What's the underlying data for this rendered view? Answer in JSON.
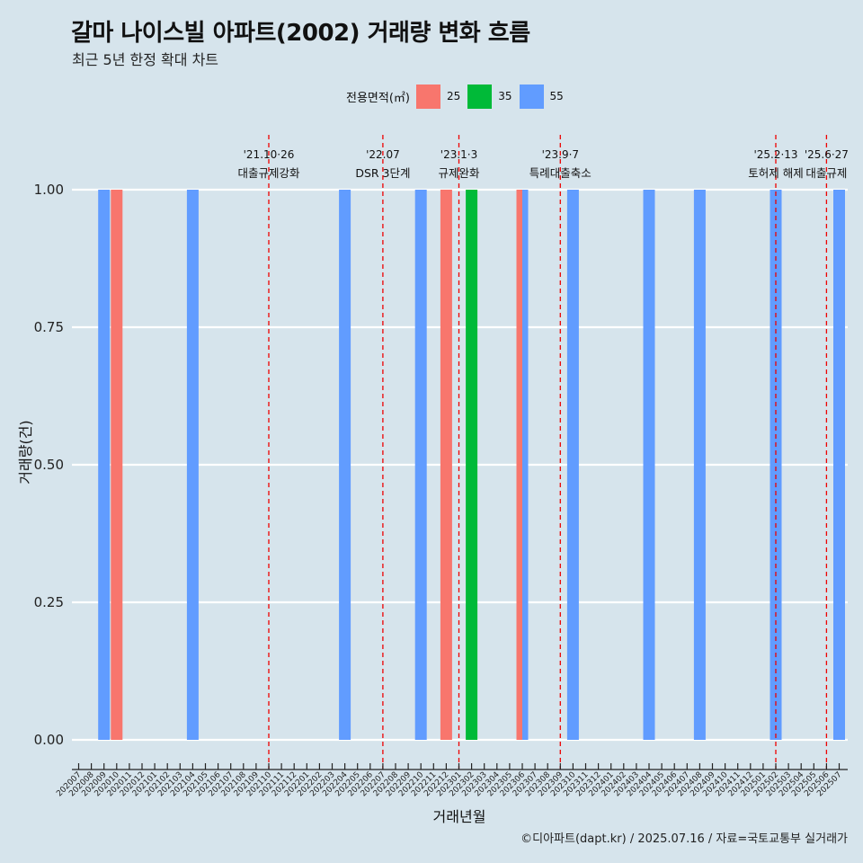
{
  "title": "갈마 나이스빌 아파트(2002) 거래량 변화 흐름",
  "subtitle": "최근 5년 한정 확대 차트",
  "caption": "©디아파트(dapt.kr) / 2025.07.16 / 자료=국토교통부 실거래가",
  "legend": {
    "title": "전용면적(㎡)",
    "items": [
      {
        "label": "25",
        "color": "#f8766d"
      },
      {
        "label": "35",
        "color": "#00ba38"
      },
      {
        "label": "55",
        "color": "#619cff"
      }
    ]
  },
  "chart_data": {
    "type": "bar",
    "xlabel": "거래년월",
    "ylabel": "거래량(건)",
    "ylim": [
      0,
      1
    ],
    "yticks": [
      "0.00",
      "0.25",
      "0.50",
      "0.75",
      "1.00"
    ],
    "categories": [
      "202007",
      "202008",
      "202009",
      "202010",
      "202011",
      "202012",
      "202101",
      "202102",
      "202103",
      "202104",
      "202105",
      "202106",
      "202107",
      "202108",
      "202109",
      "202110",
      "202111",
      "202112",
      "202201",
      "202202",
      "202203",
      "202204",
      "202205",
      "202206",
      "202207",
      "202208",
      "202209",
      "202210",
      "202211",
      "202212",
      "202301",
      "202302",
      "202303",
      "202304",
      "202305",
      "202306",
      "202307",
      "202308",
      "202309",
      "202310",
      "202311",
      "202312",
      "202401",
      "202402",
      "202403",
      "202404",
      "202405",
      "202406",
      "202407",
      "202408",
      "202409",
      "202410",
      "202411",
      "202412",
      "202501",
      "202502",
      "202503",
      "202504",
      "202505",
      "202506",
      "202507"
    ],
    "series": [
      {
        "name": "25",
        "color": "#f8766d",
        "points": [
          {
            "x": "202010",
            "y": 1
          },
          {
            "x": "202212",
            "y": 1
          },
          {
            "x": "202306",
            "y": 1
          }
        ]
      },
      {
        "name": "35",
        "color": "#00ba38",
        "points": [
          {
            "x": "202302",
            "y": 1
          }
        ]
      },
      {
        "name": "55",
        "color": "#619cff",
        "points": [
          {
            "x": "202009",
            "y": 1
          },
          {
            "x": "202104",
            "y": 1
          },
          {
            "x": "202204",
            "y": 1
          },
          {
            "x": "202210",
            "y": 1
          },
          {
            "x": "202306",
            "y": 1
          },
          {
            "x": "202310",
            "y": 1
          },
          {
            "x": "202404",
            "y": 1
          },
          {
            "x": "202408",
            "y": 1
          },
          {
            "x": "202502",
            "y": 1
          },
          {
            "x": "202507",
            "y": 1
          }
        ]
      }
    ],
    "events": [
      {
        "x": "202110",
        "line1": "'21.10·26",
        "line2": "대출규제강화"
      },
      {
        "x": "202207",
        "line1": "'22.07",
        "line2": "DSR 3단계"
      },
      {
        "x": "202301",
        "line1": "'23.1·3",
        "line2": "규제완화"
      },
      {
        "x": "202309",
        "line1": "'23.9·7",
        "line2": "특례대출축소"
      },
      {
        "x": "202502",
        "line1": "'25.2·13",
        "line2": "토허제 해제"
      },
      {
        "x": "202506",
        "line1": "'25.6·27",
        "line2": "대출규제"
      }
    ],
    "grid": true,
    "legend_position": "top"
  }
}
